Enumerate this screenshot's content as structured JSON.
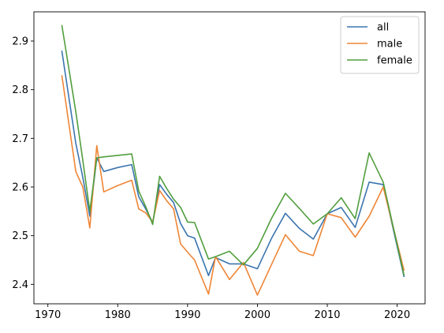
{
  "chart_data": {
    "type": "line",
    "title": "",
    "xlabel": "",
    "ylabel": "",
    "xlim": [
      1968,
      2024
    ],
    "ylim": [
      2.36,
      2.96
    ],
    "xticks": [
      1970,
      1980,
      1990,
      2000,
      2010,
      2020
    ],
    "yticks": [
      2.4,
      2.5,
      2.6,
      2.7,
      2.8,
      2.9
    ],
    "grid": false,
    "legend_position": "upper right",
    "x": [
      1972,
      1974,
      1975,
      1976,
      1977,
      1978,
      1980,
      1982,
      1983,
      1984,
      1985,
      1986,
      1987,
      1988,
      1989,
      1990,
      1991,
      1993,
      1994,
      1996,
      1998,
      2000,
      2002,
      2004,
      2006,
      2008,
      2010,
      2012,
      2014,
      2016,
      2018,
      2021
    ],
    "series": [
      {
        "name": "all",
        "color": "#3b75af",
        "values": [
          2.88,
          2.69,
          2.62,
          2.54,
          2.66,
          2.632,
          2.64,
          2.646,
          2.58,
          2.555,
          2.527,
          2.605,
          2.585,
          2.568,
          2.525,
          2.5,
          2.495,
          2.418,
          2.455,
          2.442,
          2.442,
          2.432,
          2.494,
          2.546,
          2.515,
          2.493,
          2.545,
          2.558,
          2.517,
          2.61,
          2.605,
          2.415
        ]
      },
      {
        "name": "male",
        "color": "#ef8636",
        "values": [
          2.83,
          2.632,
          2.6,
          2.516,
          2.685,
          2.59,
          2.603,
          2.614,
          2.555,
          2.547,
          2.528,
          2.593,
          2.572,
          2.555,
          2.483,
          2.466,
          2.45,
          2.38,
          2.457,
          2.41,
          2.445,
          2.378,
          2.44,
          2.502,
          2.468,
          2.459,
          2.545,
          2.537,
          2.497,
          2.54,
          2.6,
          2.428
        ]
      },
      {
        "name": "female",
        "color": "#519e3e",
        "values": [
          2.933,
          2.755,
          2.655,
          2.55,
          2.66,
          2.662,
          2.665,
          2.668,
          2.592,
          2.56,
          2.523,
          2.622,
          2.597,
          2.575,
          2.558,
          2.528,
          2.527,
          2.452,
          2.457,
          2.468,
          2.44,
          2.474,
          2.535,
          2.587,
          2.556,
          2.524,
          2.545,
          2.578,
          2.535,
          2.67,
          2.61,
          2.418
        ]
      }
    ]
  }
}
